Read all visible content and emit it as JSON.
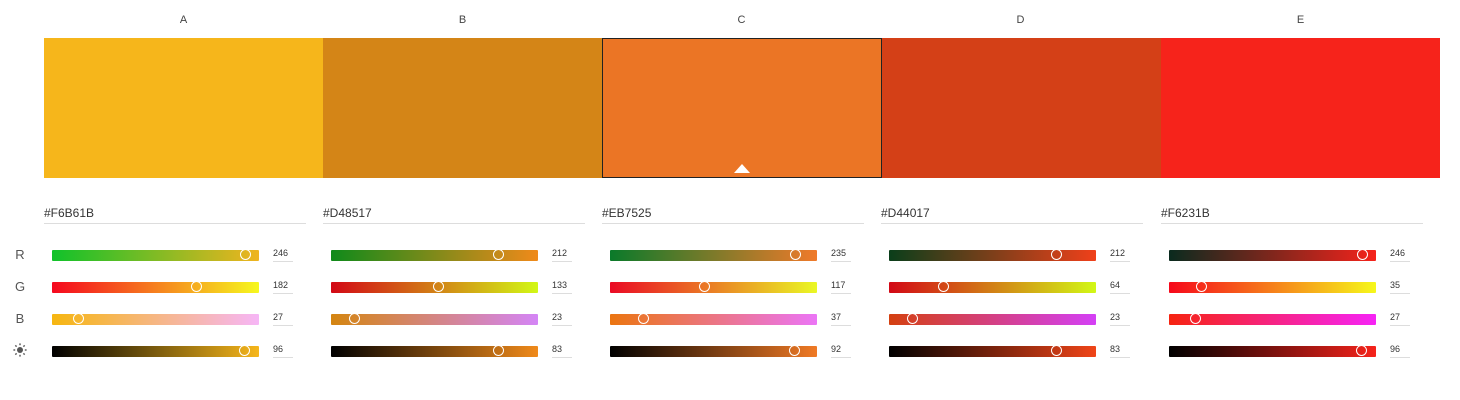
{
  "channels": [
    {
      "key": "r",
      "label": "R",
      "icon": ""
    },
    {
      "key": "g",
      "label": "G",
      "icon": ""
    },
    {
      "key": "b",
      "label": "B",
      "icon": ""
    },
    {
      "key": "brightness",
      "label": "",
      "icon": "brightness-icon"
    }
  ],
  "selected_index": 2,
  "swatches": [
    {
      "label": "A",
      "hex": "#F6B61B",
      "r": 246,
      "g": 182,
      "b": 27,
      "brightness": 96,
      "gradients": {
        "r": [
          "#10c22a",
          "#f0b41f"
        ],
        "g": [
          "#f5081f",
          "#f6f81f"
        ],
        "b": [
          "#f6b610",
          "#f6b6f6"
        ],
        "brightness": [
          "#000000",
          "#f6b61b"
        ]
      }
    },
    {
      "label": "B",
      "hex": "#D48517",
      "r": 212,
      "g": 133,
      "b": 23,
      "brightness": 83,
      "gradients": {
        "r": [
          "#0f8a1a",
          "#f08a1a"
        ],
        "g": [
          "#d20816",
          "#d2f816"
        ],
        "b": [
          "#d48510",
          "#d485f6"
        ],
        "brightness": [
          "#000000",
          "#f08a1a"
        ]
      }
    },
    {
      "label": "C",
      "hex": "#EB7525",
      "r": 235,
      "g": 117,
      "b": 37,
      "brightness": 92,
      "gradients": {
        "r": [
          "#0a7a2a",
          "#f07a2a"
        ],
        "g": [
          "#ea0a25",
          "#eaf825"
        ],
        "b": [
          "#eb7510",
          "#eb75f6"
        ],
        "brightness": [
          "#000000",
          "#f07a25"
        ]
      }
    },
    {
      "label": "D",
      "hex": "#D44017",
      "r": 212,
      "g": 64,
      "b": 23,
      "brightness": 83,
      "gradients": {
        "r": [
          "#0a3e1a",
          "#f0401a"
        ],
        "g": [
          "#d20816",
          "#d2f816"
        ],
        "b": [
          "#d44010",
          "#d440f6"
        ],
        "brightness": [
          "#000000",
          "#f04518"
        ]
      }
    },
    {
      "label": "E",
      "hex": "#F6231B",
      "r": 246,
      "g": 35,
      "b": 27,
      "brightness": 96,
      "gradients": {
        "r": [
          "#0a2a1e",
          "#f6231b"
        ],
        "g": [
          "#f6081b",
          "#f6f81b"
        ],
        "b": [
          "#f62310",
          "#f623f6"
        ],
        "brightness": [
          "#000000",
          "#f6231b"
        ]
      }
    }
  ]
}
